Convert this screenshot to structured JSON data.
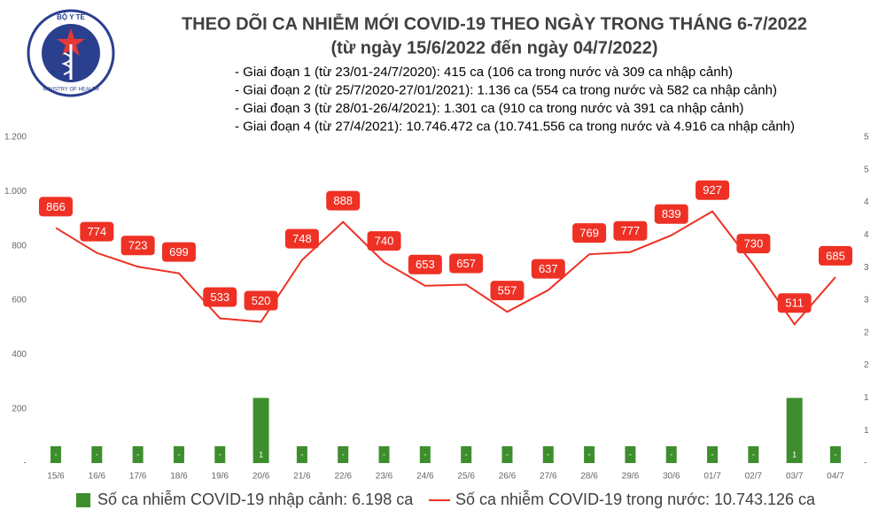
{
  "logo": {
    "top_text": "BỘ Y TẾ",
    "bottom_text": "MINISTRY OF HEALTH"
  },
  "chart_data": {
    "type": "bar-line",
    "title": "THEO DÕI CA NHIỄM MỚI COVID-19 THEO NGÀY TRONG THÁNG 6-7/2022",
    "subtitle": "(từ ngày 15/6/2022 đến ngày 04/7/2022)",
    "annotations": [
      "- Giai đoạn 1 (từ 23/01-24/7/2020): 415 ca (106 ca trong nước và 309 ca nhập cảnh)",
      "- Giai đoạn 2 (từ 25/7/2020-27/01/2021): 1.136 ca (554 ca trong nước và 582 ca nhập cảnh)",
      "- Giai đoạn 3 (từ 28/01-26/4/2021): 1.301 ca (910 ca trong nước và 391 ca nhập cảnh)",
      "- Giai đoạn 4 (từ 27/4/2021): 10.746.472 ca (10.741.556 ca trong nước và 4.916 ca nhập cảnh)"
    ],
    "categories": [
      "15/6",
      "16/6",
      "17/6",
      "18/6",
      "19/6",
      "20/6",
      "21/6",
      "22/6",
      "23/6",
      "24/6",
      "25/6",
      "26/6",
      "27/6",
      "28/6",
      "29/6",
      "30/6",
      "01/7",
      "02/7",
      "03/7",
      "04/7"
    ],
    "series": [
      {
        "name": "Số ca nhiễm COVID-19 nhập cảnh: 6.198 ca",
        "type": "bar",
        "axis": "y2",
        "color": "#3e8e2e",
        "values": [
          0,
          0,
          0,
          0,
          0,
          1,
          0,
          0,
          0,
          0,
          0,
          0,
          0,
          0,
          0,
          0,
          0,
          0,
          1,
          0
        ],
        "value_labels": [
          "-",
          "-",
          "-",
          "-",
          "-",
          "1",
          "-",
          "-",
          "-",
          "-",
          "-",
          "-",
          "-",
          "-",
          "-",
          "-",
          "-",
          "-",
          "1",
          "-"
        ]
      },
      {
        "name": "Số ca nhiễm COVID-19 trong nước: 10.743.126 ca",
        "type": "line",
        "color": "#ee3124",
        "values": [
          866,
          774,
          723,
          699,
          533,
          520,
          748,
          888,
          740,
          653,
          657,
          557,
          637,
          769,
          777,
          839,
          927,
          730,
          511,
          685
        ]
      }
    ],
    "ylim": [
      0,
      1200
    ],
    "yticks": [
      {
        "value": 0,
        "label": "-"
      },
      200,
      400,
      600,
      800,
      {
        "value": 1000,
        "label": "1.000"
      },
      {
        "value": 1200,
        "label": "1.200"
      }
    ],
    "y2lim": [
      0,
      5
    ],
    "y2ticks": [
      {
        "value": 0,
        "label": "-"
      },
      {
        "value": 0.5,
        "label": "1"
      },
      1,
      {
        "value": 1.5,
        "label": "2"
      },
      2,
      {
        "value": 2.5,
        "label": "3"
      },
      3,
      {
        "value": 3.5,
        "label": "4"
      },
      4,
      {
        "value": 4.5,
        "label": "5"
      },
      5
    ],
    "grid": false,
    "legend": "bottom"
  }
}
